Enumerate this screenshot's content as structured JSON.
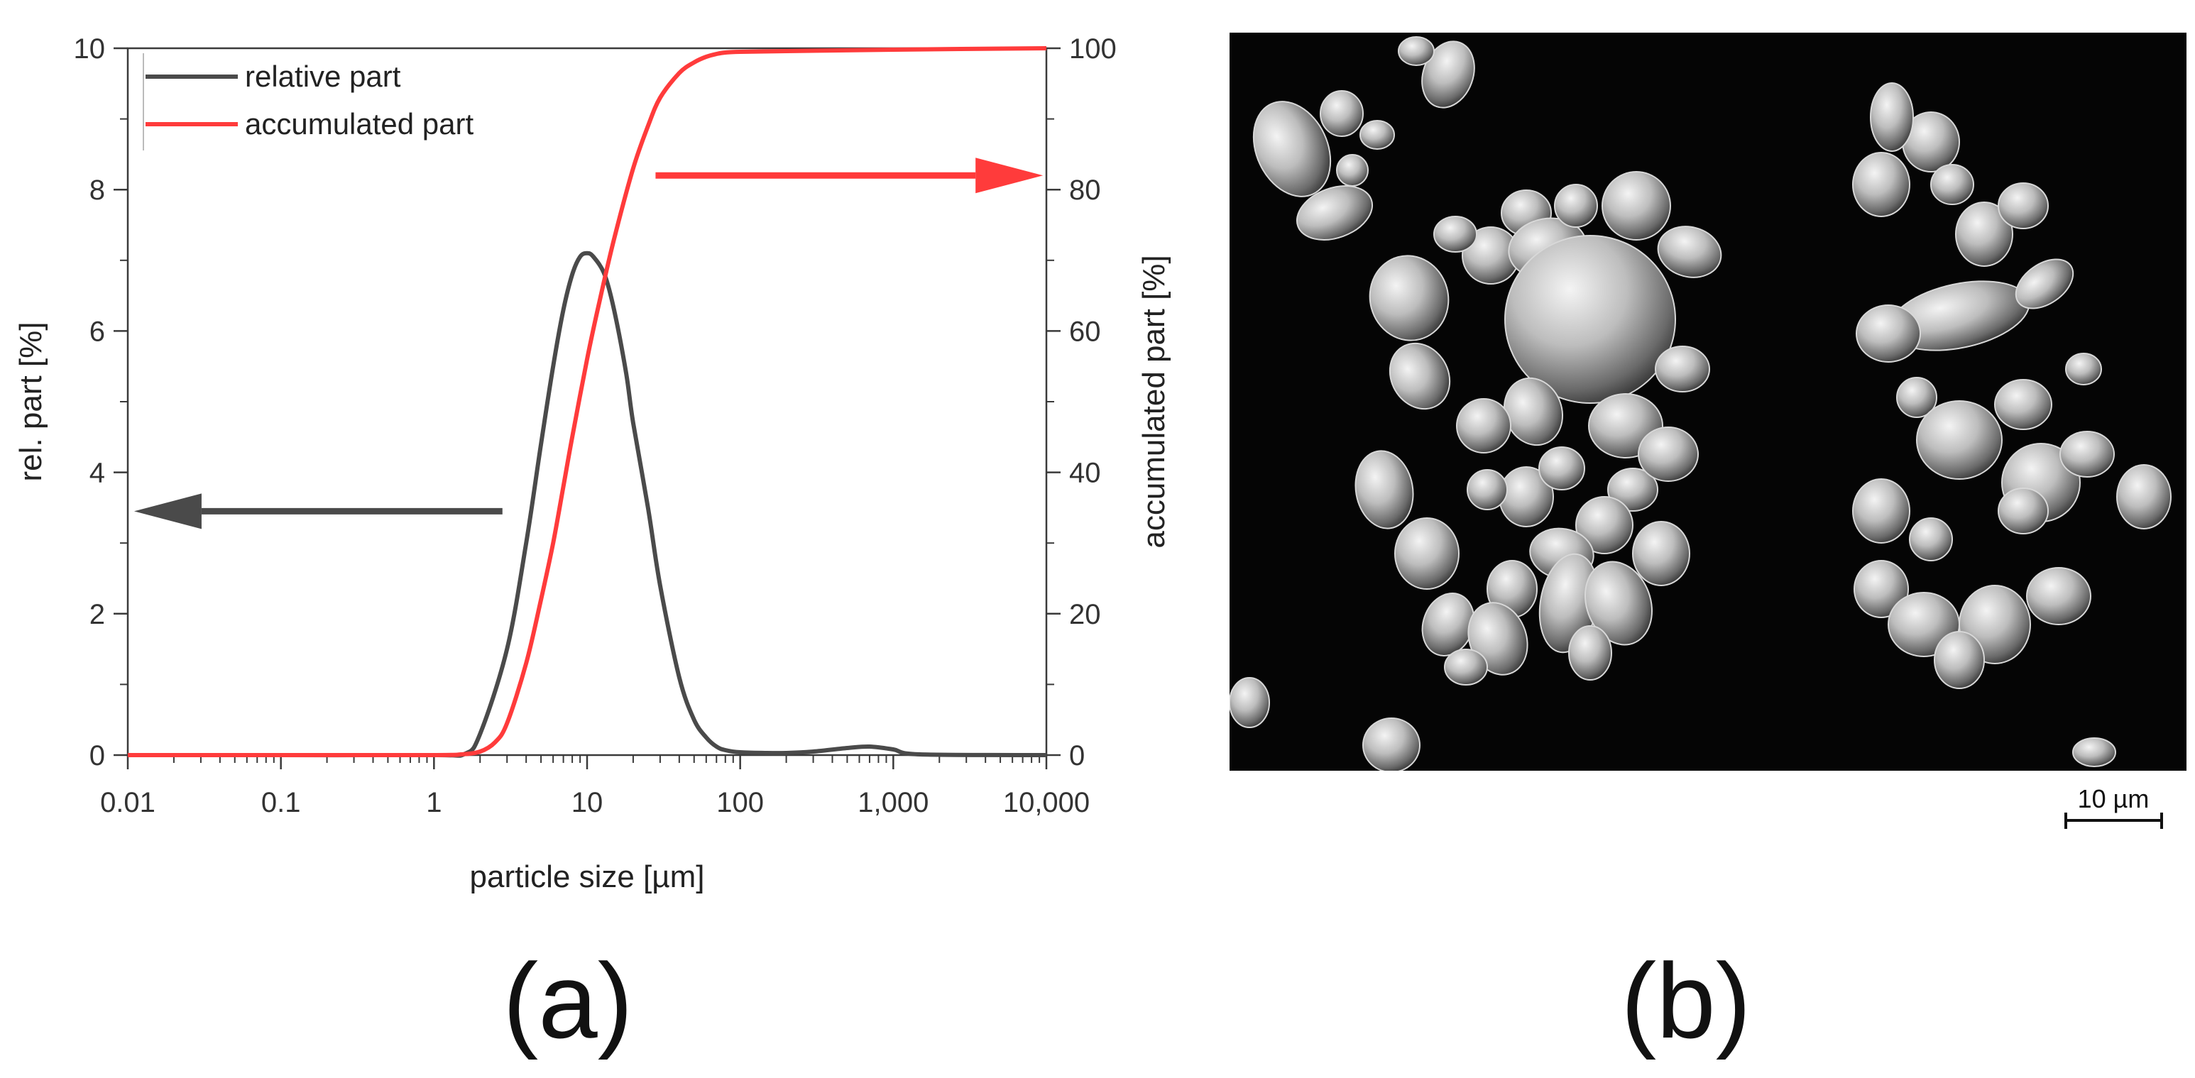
{
  "chart_data": {
    "type": "line",
    "x_scale": "log",
    "xlabel": "particle size [µm]",
    "ylabel_left": "rel. part [%]",
    "ylabel_right": "accumulated part [%]",
    "xlim": [
      0.01,
      10000
    ],
    "ylim_left": [
      0,
      10
    ],
    "ylim_right": [
      0,
      100
    ],
    "x_ticks": [
      0.01,
      0.1,
      1,
      10,
      100,
      1000,
      10000
    ],
    "x_tick_labels": [
      "0.01",
      "0.1",
      "1",
      "10",
      "100",
      "1,000",
      "10,000"
    ],
    "y_left_ticks": [
      0,
      2,
      4,
      6,
      8,
      10
    ],
    "y_left_tick_labels": [
      "0",
      "2",
      "4",
      "6",
      "8",
      "10"
    ],
    "y_right_ticks": [
      0,
      20,
      40,
      60,
      80,
      100
    ],
    "y_right_tick_labels": [
      "0",
      "20",
      "40",
      "60",
      "80",
      "100"
    ],
    "legend_position": "top-left",
    "grid": false,
    "series": [
      {
        "name": "relative part",
        "axis": "left",
        "color": "#4a4a4a",
        "x": [
          0.01,
          0.1,
          1,
          1.6,
          2,
          3,
          4,
          5,
          6,
          7,
          8,
          9,
          10,
          11,
          13,
          15,
          18,
          20,
          25,
          30,
          40,
          50,
          60,
          70,
          80,
          100,
          150,
          200,
          300,
          500,
          700,
          1000,
          1500,
          10000
        ],
        "y": [
          0,
          0,
          0,
          0.02,
          0.3,
          1.5,
          3.0,
          4.4,
          5.5,
          6.3,
          6.8,
          7.05,
          7.1,
          7.05,
          6.8,
          6.3,
          5.4,
          4.7,
          3.5,
          2.4,
          1.1,
          0.5,
          0.25,
          0.12,
          0.07,
          0.04,
          0.03,
          0.03,
          0.05,
          0.1,
          0.12,
          0.08,
          0.01,
          0
        ]
      },
      {
        "name": "accumulated part",
        "axis": "right",
        "color": "#ff3b3b",
        "x": [
          0.01,
          0.1,
          1,
          1.5,
          2,
          2.5,
          3,
          4,
          5,
          6,
          7,
          8,
          10,
          12,
          15,
          20,
          25,
          30,
          40,
          50,
          60,
          70,
          80,
          100,
          200,
          1000,
          10000
        ],
        "y": [
          0,
          0,
          0,
          0.1,
          0.5,
          1.8,
          4.5,
          13,
          22,
          30,
          38,
          45,
          56,
          64,
          73,
          83,
          89,
          93,
          96.5,
          98,
          98.8,
          99.2,
          99.4,
          99.5,
          99.6,
          99.8,
          100
        ]
      }
    ],
    "annotations": [
      {
        "type": "arrow",
        "direction": "left",
        "color": "#4a4a4a",
        "x_from": 2.8,
        "x_to": 0.011,
        "y": 3.45,
        "axis": "left"
      },
      {
        "type": "arrow",
        "direction": "right",
        "color": "#ff3b3b",
        "x_from": 28,
        "x_to": 9500,
        "y": 82,
        "axis": "right"
      }
    ]
  },
  "panel_labels": {
    "a": "(a)",
    "b": "(b)"
  },
  "micrograph": {
    "scale_bar_label": "10 µm"
  }
}
